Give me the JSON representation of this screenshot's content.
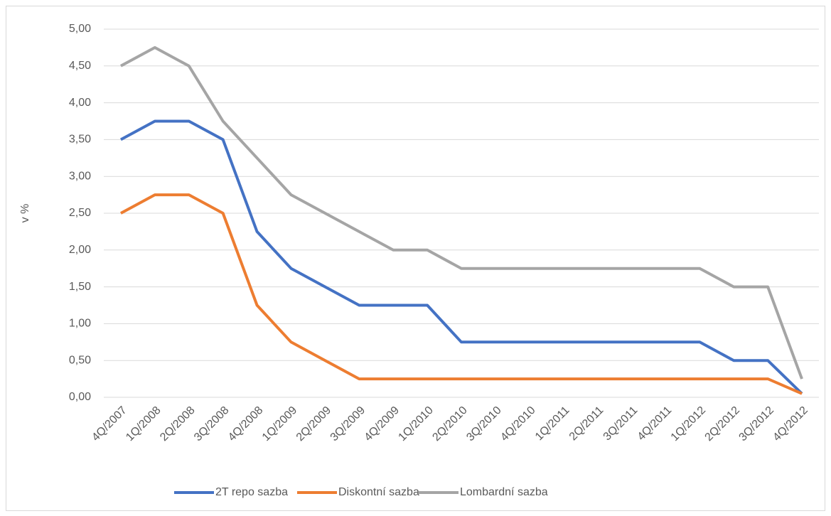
{
  "chart_data": {
    "type": "line",
    "y_label": "v %",
    "categories": [
      "4Q/2007",
      "1Q/2008",
      "2Q/2008",
      "3Q/2008",
      "4Q/2008",
      "1Q/2009",
      "2Q/2009",
      "3Q/2009",
      "4Q/2009",
      "1Q/2010",
      "2Q/2010",
      "3Q/2010",
      "4Q/2010",
      "1Q/2011",
      "2Q/2011",
      "3Q/2011",
      "4Q/2011",
      "1Q/2012",
      "2Q/2012",
      "3Q/2012",
      "4Q/2012"
    ],
    "series": [
      {
        "name": "2T repo sazba",
        "color": "#4472c4",
        "values": [
          3.5,
          3.75,
          3.75,
          3.5,
          2.25,
          1.75,
          1.5,
          1.25,
          1.25,
          1.25,
          0.75,
          0.75,
          0.75,
          0.75,
          0.75,
          0.75,
          0.75,
          0.75,
          0.5,
          0.5,
          0.05
        ]
      },
      {
        "name": "Diskontní sazba",
        "color": "#ed7d31",
        "values": [
          2.5,
          2.75,
          2.75,
          2.5,
          1.25,
          0.75,
          0.5,
          0.25,
          0.25,
          0.25,
          0.25,
          0.25,
          0.25,
          0.25,
          0.25,
          0.25,
          0.25,
          0.25,
          0.25,
          0.25,
          0.05
        ]
      },
      {
        "name": "Lombardní sazba",
        "color": "#a5a5a5",
        "values": [
          4.5,
          4.75,
          4.5,
          3.75,
          3.25,
          2.75,
          2.5,
          2.25,
          2.0,
          2.0,
          1.75,
          1.75,
          1.75,
          1.75,
          1.75,
          1.75,
          1.75,
          1.75,
          1.5,
          1.5,
          0.25
        ]
      }
    ],
    "ylim": [
      0,
      5
    ],
    "yticks": [
      {
        "value": 0,
        "label": "0,00"
      },
      {
        "value": 0.5,
        "label": "0,50"
      },
      {
        "value": 1,
        "label": "1,00"
      },
      {
        "value": 1.5,
        "label": "1,50"
      },
      {
        "value": 2,
        "label": "2,00"
      },
      {
        "value": 2.5,
        "label": "2,50"
      },
      {
        "value": 3,
        "label": "3,00"
      },
      {
        "value": 3.5,
        "label": "3,50"
      },
      {
        "value": 4,
        "label": "4,00"
      },
      {
        "value": 4.5,
        "label": "4,50"
      },
      {
        "value": 5,
        "label": "5,00"
      }
    ],
    "grid": true,
    "legend": "bottom"
  }
}
